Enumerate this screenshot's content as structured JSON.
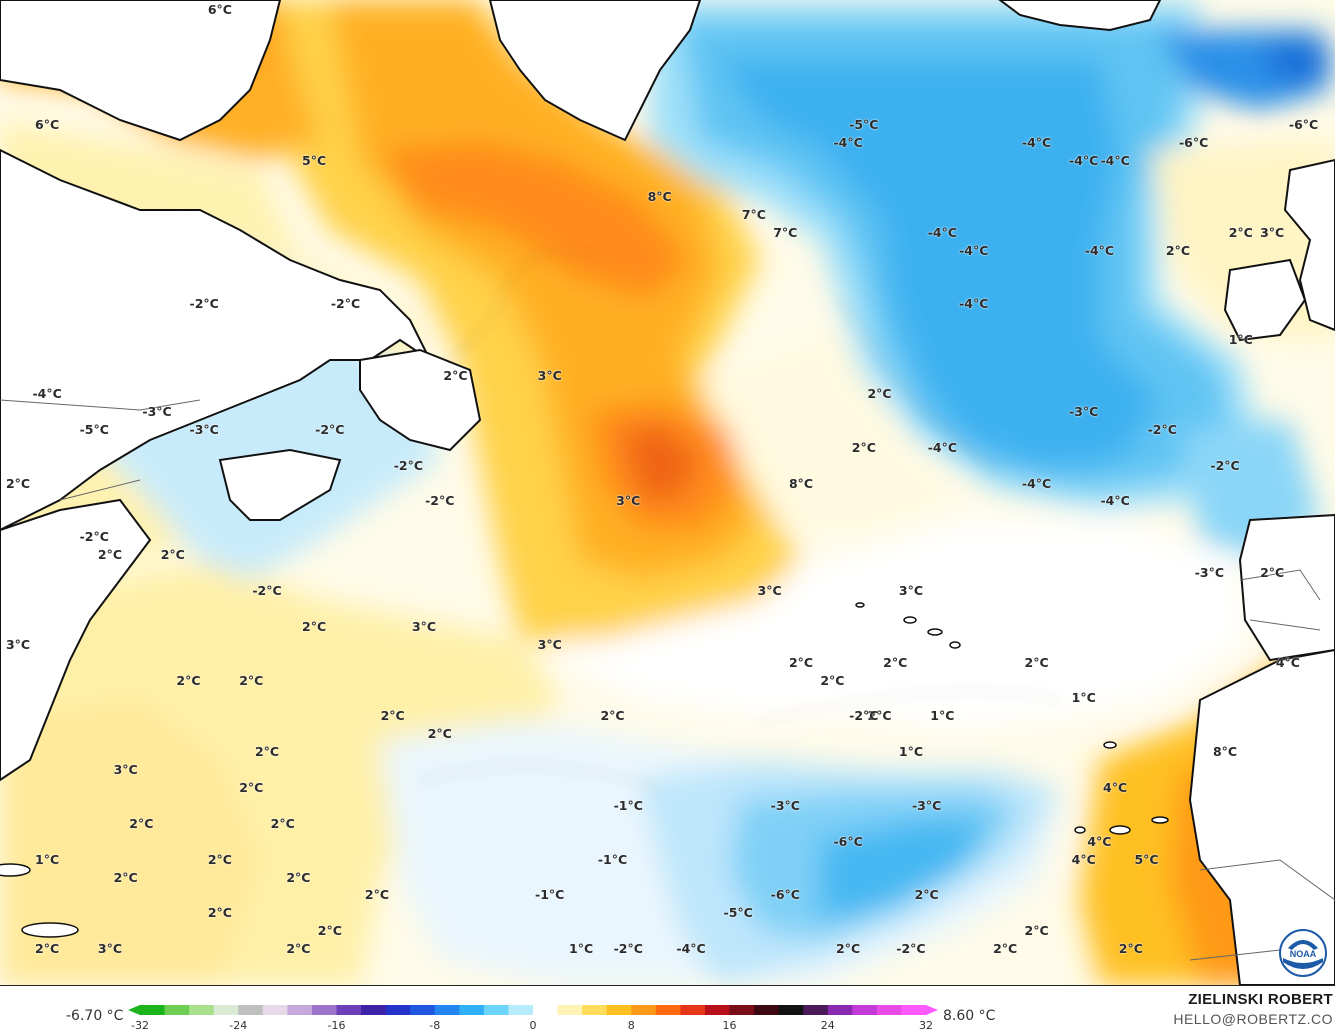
{
  "map": {
    "variable": "sea surface temperature anomaly",
    "units": "°C",
    "labels": [
      {
        "t": "6°C",
        "lon": -66,
        "lat": 70
      },
      {
        "t": "6°C",
        "lon": -77,
        "lat": 63
      },
      {
        "t": "5°C",
        "lon": -60,
        "lat": 61
      },
      {
        "t": "8°C",
        "lon": -38,
        "lat": 59
      },
      {
        "t": "7°C",
        "lon": -32,
        "lat": 58
      },
      {
        "t": "7°C",
        "lon": -30,
        "lat": 57
      },
      {
        "t": "-2°C",
        "lon": -67,
        "lat": 53
      },
      {
        "t": "-2°C",
        "lon": -58,
        "lat": 53
      },
      {
        "t": "2°C",
        "lon": -51,
        "lat": 49
      },
      {
        "t": "3°C",
        "lon": -45,
        "lat": 49
      },
      {
        "t": "-4°C",
        "lon": -77,
        "lat": 48
      },
      {
        "t": "-3°C",
        "lon": -70,
        "lat": 47
      },
      {
        "t": "-5°C",
        "lon": -74,
        "lat": 46
      },
      {
        "t": "-3°C",
        "lon": -67,
        "lat": 46
      },
      {
        "t": "-2°C",
        "lon": -59,
        "lat": 46
      },
      {
        "t": "-2°C",
        "lon": -54,
        "lat": 44
      },
      {
        "t": "2°C",
        "lon": -79,
        "lat": 43
      },
      {
        "t": "-2°C",
        "lon": -52,
        "lat": 42
      },
      {
        "t": "3°C",
        "lon": -40,
        "lat": 42
      },
      {
        "t": "8°C",
        "lon": -29,
        "lat": 43
      },
      {
        "t": "-2°C",
        "lon": -74,
        "lat": 40
      },
      {
        "t": "2°C",
        "lon": -73,
        "lat": 39
      },
      {
        "t": "2°C",
        "lon": -69,
        "lat": 39
      },
      {
        "t": "-2°C",
        "lon": -63,
        "lat": 37
      },
      {
        "t": "3°C",
        "lon": -22,
        "lat": 37
      },
      {
        "t": "2°C",
        "lon": -60,
        "lat": 35
      },
      {
        "t": "3°C",
        "lon": -53,
        "lat": 35
      },
      {
        "t": "3°C",
        "lon": -45,
        "lat": 34
      },
      {
        "t": "3°C",
        "lon": -79,
        "lat": 34
      },
      {
        "t": "2°C",
        "lon": -68,
        "lat": 32
      },
      {
        "t": "2°C",
        "lon": -64,
        "lat": 32
      },
      {
        "t": "2°C",
        "lon": -55,
        "lat": 30
      },
      {
        "t": "2°C",
        "lon": -52,
        "lat": 29
      },
      {
        "t": "2°C",
        "lon": -41,
        "lat": 30
      },
      {
        "t": "2°C",
        "lon": -63,
        "lat": 28
      },
      {
        "t": "3°C",
        "lon": -72,
        "lat": 27
      },
      {
        "t": "2°C",
        "lon": -64,
        "lat": 26
      },
      {
        "t": "2°C",
        "lon": -71,
        "lat": 24
      },
      {
        "t": "2°C",
        "lon": -62,
        "lat": 24
      },
      {
        "t": "1°C",
        "lon": -77,
        "lat": 22
      },
      {
        "t": "2°C",
        "lon": -72,
        "lat": 21
      },
      {
        "t": "2°C",
        "lon": -66,
        "lat": 22
      },
      {
        "t": "2°C",
        "lon": -61,
        "lat": 21
      },
      {
        "t": "2°C",
        "lon": -56,
        "lat": 20
      },
      {
        "t": "2°C",
        "lon": -66,
        "lat": 19
      },
      {
        "t": "2°C",
        "lon": -59,
        "lat": 18
      },
      {
        "t": "2°C",
        "lon": -77,
        "lat": 17
      },
      {
        "t": "3°C",
        "lon": -73,
        "lat": 17
      },
      {
        "t": "2°C",
        "lon": -61,
        "lat": 17
      },
      {
        "t": "1°C",
        "lon": -43,
        "lat": 17
      },
      {
        "t": "-2°C",
        "lon": -40,
        "lat": 17
      },
      {
        "t": "-4°C",
        "lon": -36,
        "lat": 17
      },
      {
        "t": "-1°C",
        "lon": -40,
        "lat": 25
      },
      {
        "t": "-1°C",
        "lon": -41,
        "lat": 22
      },
      {
        "t": "-1°C",
        "lon": -45,
        "lat": 20
      },
      {
        "t": "-3°C",
        "lon": -30,
        "lat": 25
      },
      {
        "t": "-3°C",
        "lon": -21,
        "lat": 25
      },
      {
        "t": "-6°C",
        "lon": -26,
        "lat": 23
      },
      {
        "t": "-6°C",
        "lon": -30,
        "lat": 20
      },
      {
        "t": "-5°C",
        "lon": -33,
        "lat": 19
      },
      {
        "t": "2°C",
        "lon": -26,
        "lat": 17
      },
      {
        "t": "2°C",
        "lon": -16,
        "lat": 17
      },
      {
        "t": "-2°C",
        "lon": -22,
        "lat": 17
      },
      {
        "t": "2°C",
        "lon": -21,
        "lat": 20
      },
      {
        "t": "2°C",
        "lon": -14,
        "lat": 18
      },
      {
        "t": "2°C",
        "lon": -8,
        "lat": 17
      },
      {
        "t": "4°C",
        "lon": -10,
        "lat": 23
      },
      {
        "t": "4°C",
        "lon": -11,
        "lat": 22
      },
      {
        "t": "4°C",
        "lon": -9,
        "lat": 26
      },
      {
        "t": "5°C",
        "lon": -7,
        "lat": 22
      },
      {
        "t": "8°C",
        "lon": -2,
        "lat": 28
      },
      {
        "t": "1°C",
        "lon": -11,
        "lat": 31
      },
      {
        "t": "2°C",
        "lon": -14,
        "lat": 33
      },
      {
        "t": "1°C",
        "lon": -20,
        "lat": 30
      },
      {
        "t": "1°C",
        "lon": -22,
        "lat": 28
      },
      {
        "t": "2°C",
        "lon": -24,
        "lat": 30
      },
      {
        "t": "-2°C",
        "lon": -25,
        "lat": 30
      },
      {
        "t": "2°C",
        "lon": -23,
        "lat": 33
      },
      {
        "t": "2°C",
        "lon": -29,
        "lat": 33
      },
      {
        "t": "2°C",
        "lon": -27,
        "lat": 32
      },
      {
        "t": "3°C",
        "lon": -31,
        "lat": 37
      },
      {
        "t": "2°C",
        "lon": -24,
        "lat": 48
      },
      {
        "t": "2°C",
        "lon": -25,
        "lat": 45
      },
      {
        "t": "-4°C",
        "lon": -26,
        "lat": 62
      },
      {
        "t": "-5°C",
        "lon": -25,
        "lat": 63
      },
      {
        "t": "-4°C",
        "lon": -20,
        "lat": 57
      },
      {
        "t": "-4°C",
        "lon": -18,
        "lat": 56
      },
      {
        "t": "-4°C",
        "lon": -18,
        "lat": 53
      },
      {
        "t": "-4°C",
        "lon": -14,
        "lat": 62
      },
      {
        "t": "-4°C",
        "lon": -11,
        "lat": 61
      },
      {
        "t": "-4°C",
        "lon": -9,
        "lat": 61
      },
      {
        "t": "-4°C",
        "lon": -10,
        "lat": 56
      },
      {
        "t": "-6°C",
        "lon": -4,
        "lat": 62
      },
      {
        "t": "-6°C",
        "lon": 3,
        "lat": 63
      },
      {
        "t": "-3°C",
        "lon": -11,
        "lat": 47
      },
      {
        "t": "-4°C",
        "lon": -20,
        "lat": 45
      },
      {
        "t": "-4°C",
        "lon": -14,
        "lat": 43
      },
      {
        "t": "-4°C",
        "lon": -9,
        "lat": 42
      },
      {
        "t": "-2°C",
        "lon": -6,
        "lat": 46
      },
      {
        "t": "-2°C",
        "lon": -2,
        "lat": 44
      },
      {
        "t": "-3°C",
        "lon": -3,
        "lat": 38
      },
      {
        "t": "2°C",
        "lon": -5,
        "lat": 56
      },
      {
        "t": "2°C",
        "lon": -1,
        "lat": 57
      },
      {
        "t": "3°C",
        "lon": 1,
        "lat": 57
      },
      {
        "t": "2°C",
        "lon": 1,
        "lat": 38
      },
      {
        "t": "1°C",
        "lon": -1,
        "lat": 51
      },
      {
        "t": "4°C",
        "lon": 2,
        "lat": 33
      }
    ]
  },
  "legend": {
    "min_label": "-6.70 °C",
    "max_label": "8.60 °C",
    "range": [
      -32,
      32
    ],
    "ticks": [
      "-32",
      "-24",
      "-16",
      "-8",
      "0",
      "8",
      "16",
      "24",
      "32"
    ],
    "colors": [
      "#1bb41b",
      "#6ccf52",
      "#a8e08c",
      "#d9ecd3",
      "#bfbfbf",
      "#e7d9ea",
      "#c6a8dd",
      "#9c74cc",
      "#6a3fb8",
      "#3d22a8",
      "#2433c9",
      "#1f57e0",
      "#2385ef",
      "#2fb0f6",
      "#6bd4fb",
      "#b6ecfd",
      "#ffffff",
      "#fff3b6",
      "#ffdc5a",
      "#ffc020",
      "#ff9a18",
      "#ff6a10",
      "#e6361a",
      "#b8101a",
      "#7a0e18",
      "#3e0812",
      "#111111",
      "#4a1a5a",
      "#8a2ab0",
      "#c23ad8",
      "#e84ae6",
      "#ff5aff"
    ]
  },
  "credit": {
    "author": "ZIELINSKI ROBERT",
    "contact": "HELLO@ROBERTZ.CO"
  },
  "logo": {
    "text": "NOAA",
    "color": "#1d5aa8"
  }
}
